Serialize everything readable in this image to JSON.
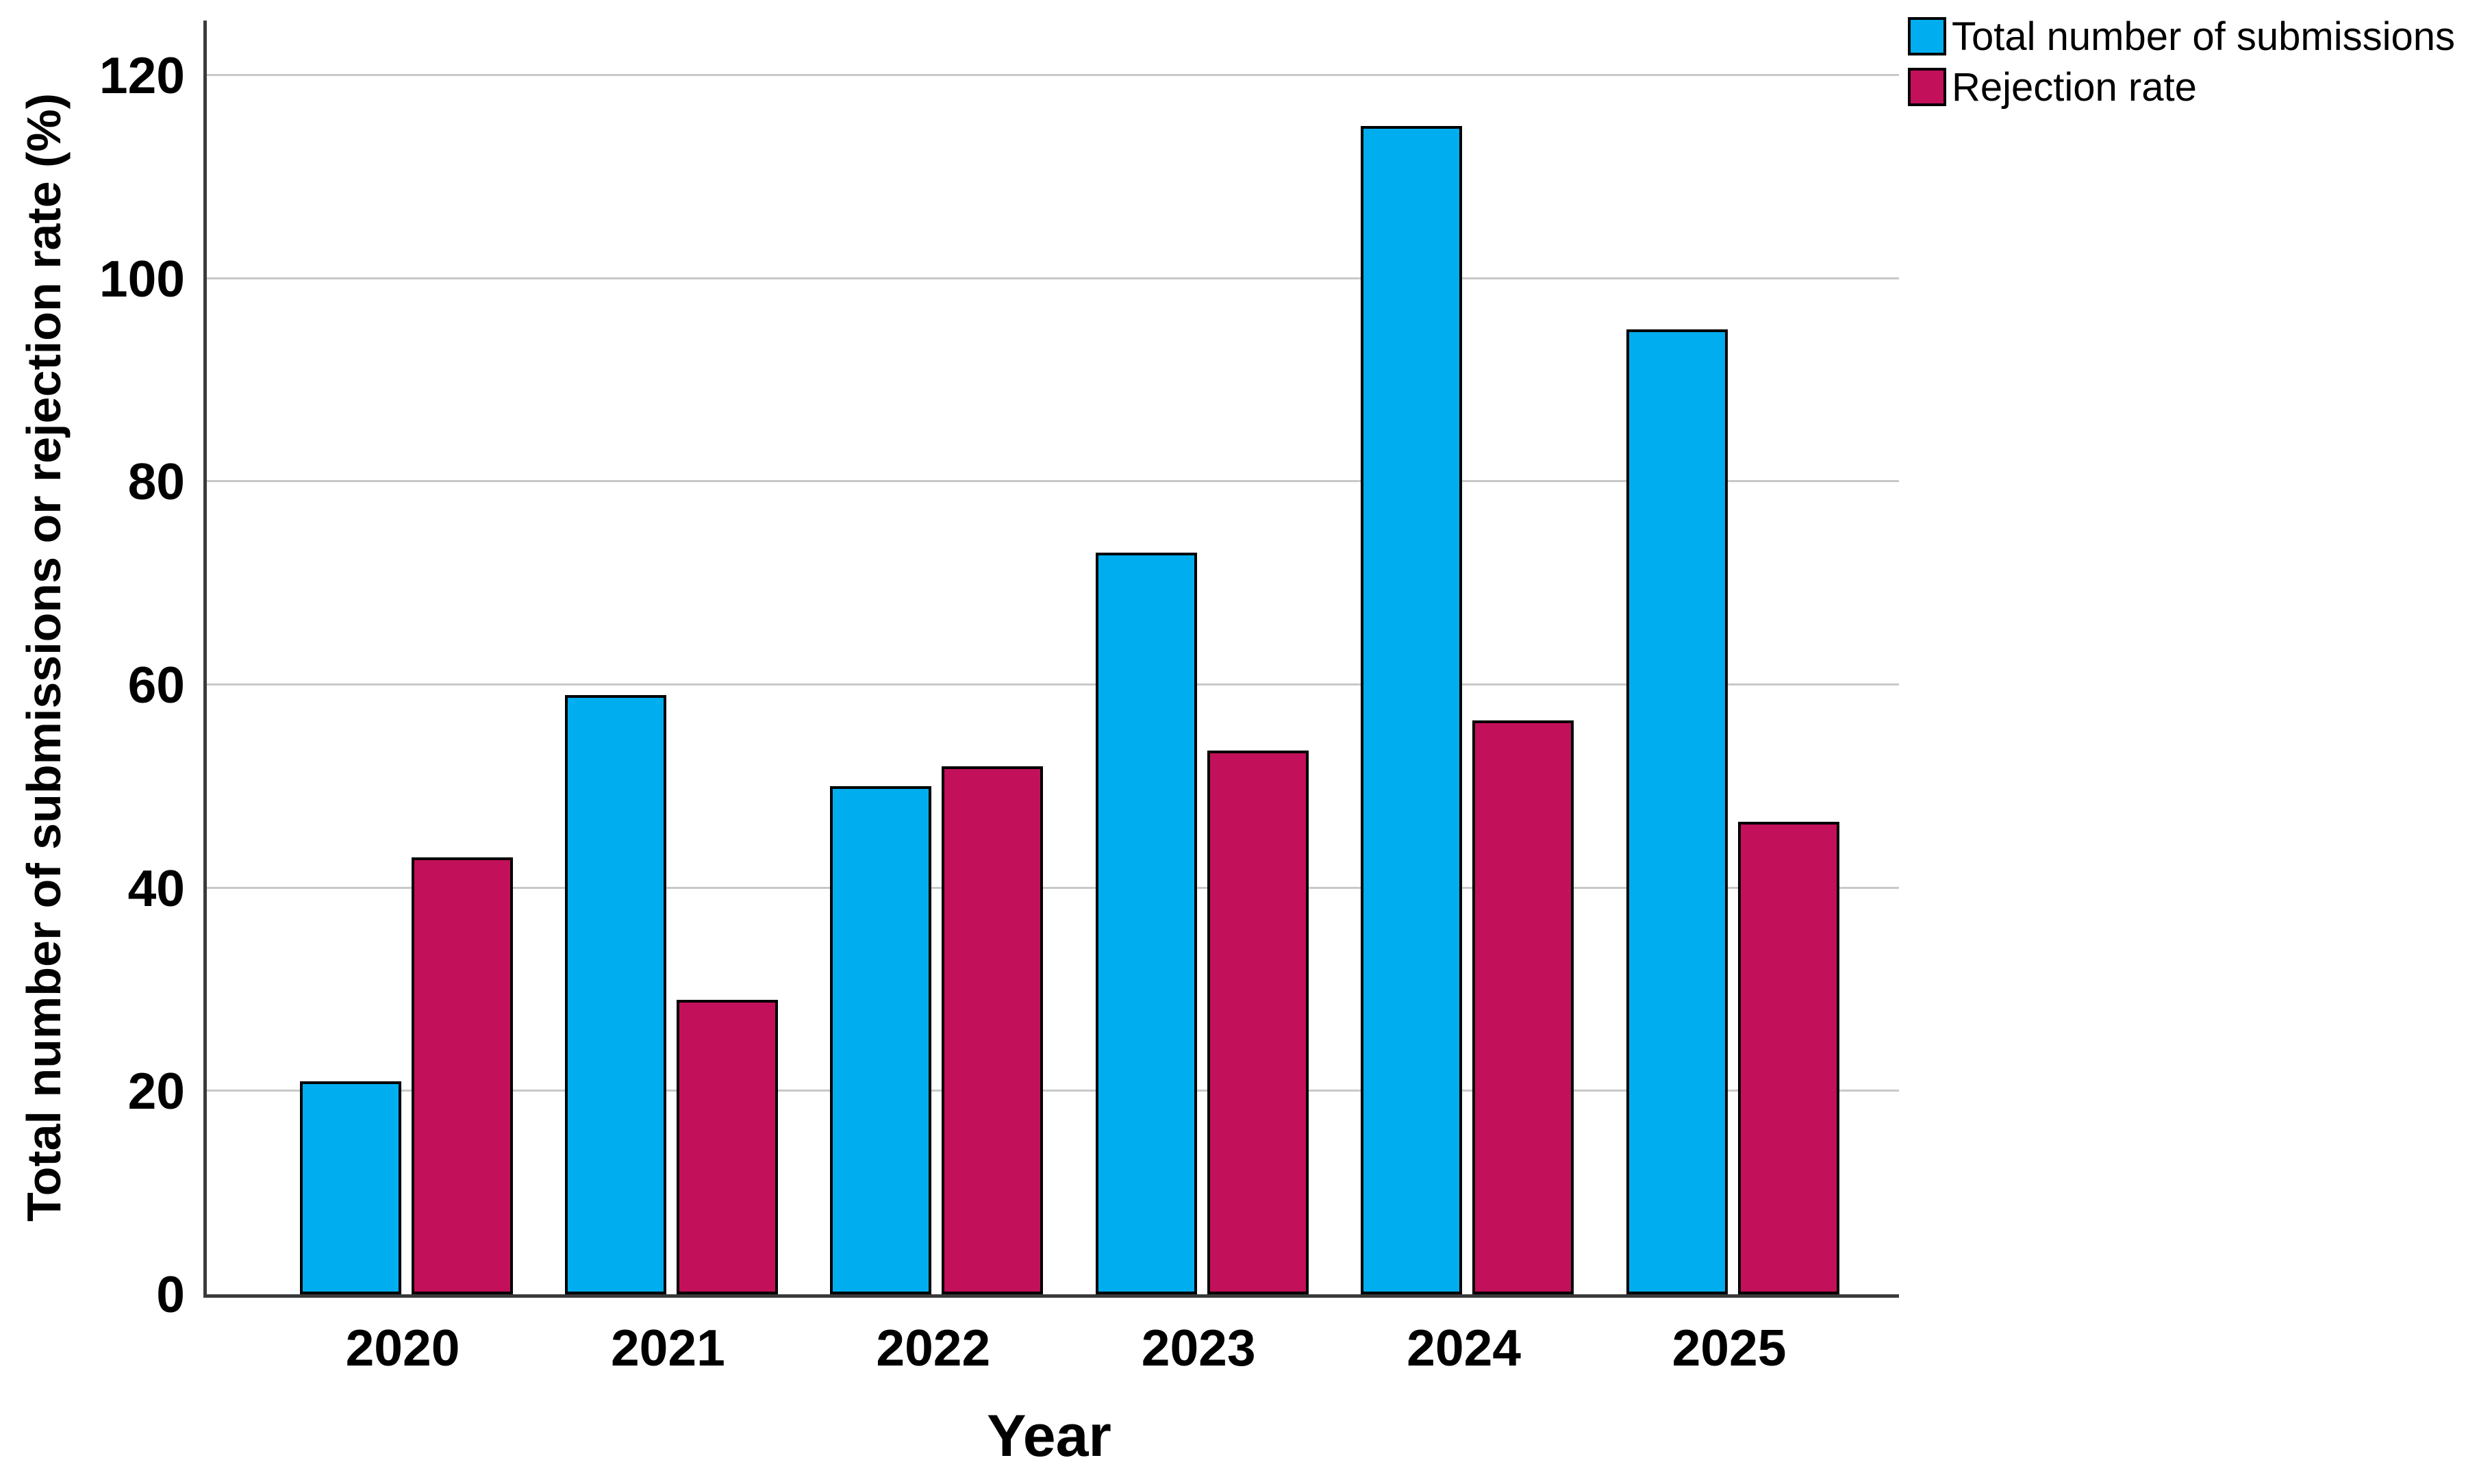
{
  "figure": {
    "background_color": "#ffffff",
    "gridline_color": "#c8c8c8",
    "axis_line_color": "#3a3a3a",
    "bar_border_color": "#000000",
    "text_color": "#000000"
  },
  "chart_data": {
    "type": "bar",
    "title": "",
    "categories": [
      "2020",
      "2021",
      "2022",
      "2023",
      "2024",
      "2025"
    ],
    "series": [
      {
        "name": "Total number of submissions",
        "color": "#00aeef",
        "values": [
          21,
          59,
          50,
          73,
          115,
          95
        ]
      },
      {
        "name": "Rejection rate",
        "color": "#c3105a",
        "values": [
          43,
          29,
          52,
          53.5,
          56.5,
          46.5
        ]
      }
    ],
    "xlabel": "Year",
    "ylabel": "Total number of submissions or rejection rate (%)",
    "ylim": [
      0,
      125.4
    ],
    "yticks": [
      0,
      20,
      40,
      60,
      80,
      100,
      120
    ],
    "grid": "horizontal gridlines at each y tick, no gridline at 0",
    "legend_position": "top-right",
    "legend_entries": [
      "Total number of submissions",
      "Rejection rate"
    ]
  }
}
